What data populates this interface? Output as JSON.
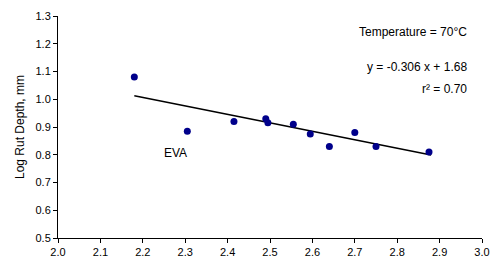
{
  "chart_data": {
    "type": "scatter",
    "y_label": "Log Rut Depth, mm",
    "x": [
      2.18,
      2.305,
      2.415,
      2.49,
      2.495,
      2.555,
      2.595,
      2.64,
      2.7,
      2.75,
      2.875
    ],
    "values": [
      1.08,
      0.885,
      0.92,
      0.93,
      0.915,
      0.91,
      0.875,
      0.83,
      0.88,
      0.83,
      0.81
    ],
    "color": "#00008b",
    "marker": "circle",
    "trendline": {
      "x": [
        2.18,
        2.88
      ],
      "slope": -0.306,
      "intercept": 1.68,
      "color": "#000000"
    },
    "point_annotations": [
      {
        "text": "EVA",
        "x": 2.305,
        "y": 0.885
      }
    ],
    "notes": [
      "Temperature = 70°C",
      "y = -0.306 x + 1.68",
      "r² = 0.70"
    ],
    "xlim": [
      2.0,
      3.0
    ],
    "xticks": [
      {
        "value": 2.0,
        "label": "2.0"
      },
      2.1,
      2.2,
      2.3,
      2.4,
      2.5,
      2.6,
      2.7,
      2.8,
      2.9,
      {
        "value": 3.0,
        "label": "3.0"
      }
    ],
    "ylim": [
      0.5,
      1.3
    ],
    "yticks": [
      0.5,
      0.6,
      0.7,
      0.8,
      0.9,
      {
        "value": 1.0,
        "label": "1.0"
      },
      1.1,
      1.2,
      1.3
    ],
    "grid": false
  }
}
